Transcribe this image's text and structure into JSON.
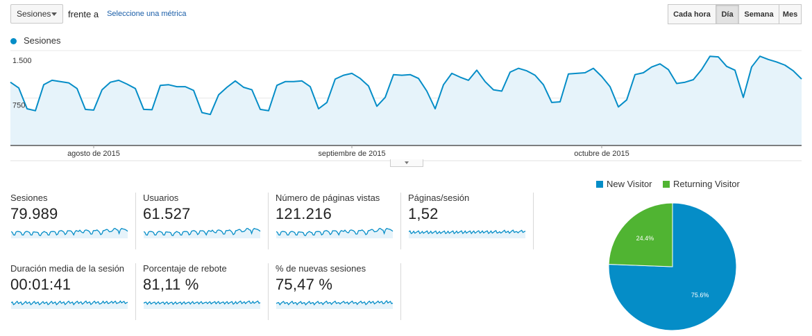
{
  "toolbar": {
    "metric_select": "Sesiones",
    "vs_text": "frente a",
    "compare_link": "Seleccione una métrica",
    "periods": [
      {
        "label": "Cada hora",
        "active": false
      },
      {
        "label": "Día",
        "active": true
      },
      {
        "label": "Semana",
        "active": false
      },
      {
        "label": "Mes",
        "active": false
      }
    ]
  },
  "chart_data": [
    {
      "type": "area",
      "series": [
        {
          "name": "Sesiones",
          "color": "#058dc7",
          "values": [
            1000,
            910,
            580,
            550,
            960,
            1030,
            1010,
            990,
            900,
            570,
            560,
            880,
            1000,
            1030,
            970,
            900,
            570,
            565,
            950,
            960,
            930,
            930,
            870,
            520,
            490,
            800,
            920,
            1020,
            920,
            880,
            570,
            550,
            950,
            1010,
            1010,
            1020,
            930,
            580,
            680,
            1050,
            1110,
            1140,
            1060,
            940,
            620,
            760,
            1120,
            1110,
            1120,
            1060,
            860,
            580,
            960,
            1140,
            1080,
            1030,
            1190,
            1010,
            880,
            860,
            1160,
            1220,
            1180,
            1110,
            960,
            680,
            690,
            1130,
            1140,
            1150,
            1220,
            1090,
            930,
            610,
            720,
            1120,
            1150,
            1240,
            1290,
            1200,
            980,
            1000,
            1040,
            1200,
            1410,
            1400,
            1250,
            1190,
            760,
            1240,
            1410,
            1360,
            1320,
            1270,
            1180,
            1050
          ]
        }
      ],
      "ylim": [
        0,
        1500
      ],
      "yticks": [
        "1.500",
        "750"
      ],
      "xticks": [
        {
          "label": "agosto de 2015",
          "index": 10
        },
        {
          "label": "septiembre de 2015",
          "index": 41
        },
        {
          "label": "octubre de 2015",
          "index": 71
        }
      ],
      "legend": "top-left",
      "grid": true
    },
    {
      "type": "pie",
      "series": [
        {
          "name": "New Visitor",
          "value": 75.6,
          "label": "75.6%",
          "color": "#058dc7"
        },
        {
          "name": "Returning Visitor",
          "value": 24.4,
          "label": "24.4%",
          "color": "#50b432"
        }
      ],
      "legend": "top"
    }
  ],
  "metrics": [
    {
      "name": "Sesiones",
      "value": "79.989"
    },
    {
      "name": "Usuarios",
      "value": "61.527"
    },
    {
      "name": "Número de páginas vistas",
      "value": "121.216"
    },
    {
      "name": "Páginas/sesión",
      "value": "1,52"
    },
    {
      "name": "Duración media de la sesión",
      "value": "00:01:41"
    },
    {
      "name": "Porcentaje de rebote",
      "value": "81,11 %"
    },
    {
      "name": "% de nuevas sesiones",
      "value": "75,47 %"
    }
  ]
}
